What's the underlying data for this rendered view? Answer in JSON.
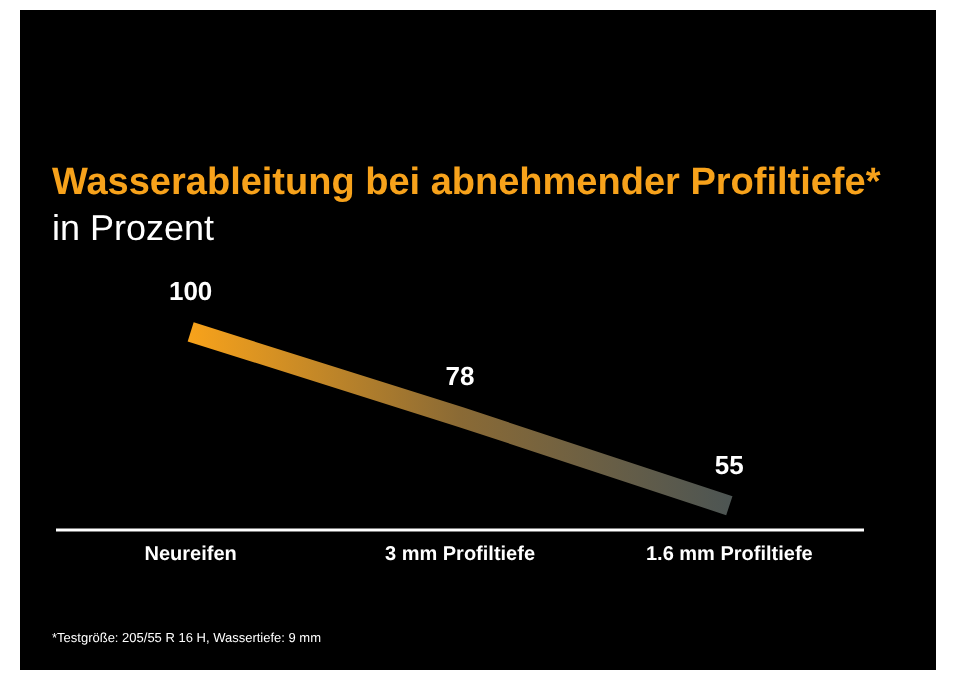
{
  "chart_data": {
    "type": "line",
    "title": "Wasserableitung bei abnehmender Profiltiefe*",
    "subtitle": "in Prozent",
    "categories": [
      "Neureifen",
      "3 mm Profiltiefe",
      "1.6 mm Profiltiefe"
    ],
    "series": [
      {
        "colors": [
          "#f7a21b",
          "#8a6a35",
          "#4d5553"
        ],
        "values": [
          100,
          78,
          55
        ]
      }
    ],
    "data_labels": true,
    "legend": false,
    "marker": "none",
    "line_style": "solid",
    "annotations": [
      "*Testgröße: 205/55 R 16 H, Wassertiefe: 9 mm"
    ]
  }
}
